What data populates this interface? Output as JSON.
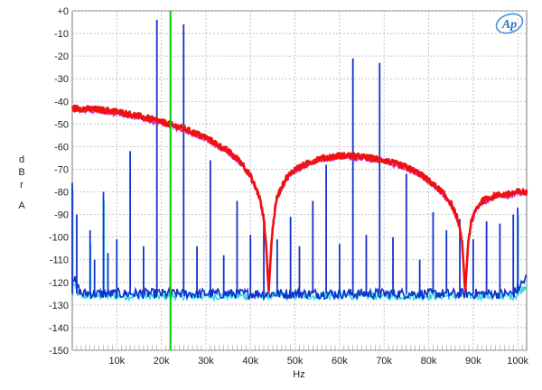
{
  "chart_data": {
    "type": "line",
    "xlabel": "Hz",
    "ylabel_lines": [
      "d",
      "B",
      "r",
      "",
      "A"
    ],
    "xlim": [
      0,
      102000
    ],
    "ylim": [
      -150,
      0
    ],
    "grid": true,
    "legend": "none",
    "logo_text": "Ap",
    "x_ticks": [
      {
        "v": 10000,
        "label": "10k"
      },
      {
        "v": 20000,
        "label": "20k"
      },
      {
        "v": 30000,
        "label": "30k"
      },
      {
        "v": 40000,
        "label": "40k"
      },
      {
        "v": 50000,
        "label": "50k"
      },
      {
        "v": 60000,
        "label": "60k"
      },
      {
        "v": 70000,
        "label": "70k"
      },
      {
        "v": 80000,
        "label": "80k"
      },
      {
        "v": 90000,
        "label": "90k"
      },
      {
        "v": 100000,
        "label": "100k"
      }
    ],
    "y_ticks": [
      {
        "v": 0,
        "label": "+0"
      },
      {
        "v": -10,
        "label": "-10"
      },
      {
        "v": -20,
        "label": "-20"
      },
      {
        "v": -30,
        "label": "-30"
      },
      {
        "v": -40,
        "label": "-40"
      },
      {
        "v": -50,
        "label": "-50"
      },
      {
        "v": -60,
        "label": "-60"
      },
      {
        "v": -70,
        "label": "-70"
      },
      {
        "v": -80,
        "label": "-80"
      },
      {
        "v": -90,
        "label": "-90"
      },
      {
        "v": -100,
        "label": "-100"
      },
      {
        "v": -110,
        "label": "-110"
      },
      {
        "v": -120,
        "label": "-120"
      },
      {
        "v": -130,
        "label": "-130"
      },
      {
        "v": -140,
        "label": "-140"
      },
      {
        "v": -150,
        "label": "-150"
      }
    ],
    "marker": {
      "x": 22050,
      "color": "#00cc00"
    },
    "series": [
      {
        "color": "#ee1111",
        "x": [
          0,
          5000,
          10000,
          15000,
          20000,
          25000,
          30000,
          35000,
          38000,
          40000,
          42000,
          43000,
          43500,
          44100,
          44700,
          45200,
          46000,
          48000,
          50000,
          55000,
          60000,
          62000,
          65000,
          70000,
          75000,
          78000,
          80000,
          83000,
          85000,
          86500,
          87500,
          88200,
          88900,
          89500,
          90500,
          92000,
          95000,
          98000,
          100000,
          102000
        ],
        "y": [
          -43,
          -43.5,
          -44.5,
          -46.5,
          -49,
          -52,
          -56,
          -62,
          -67,
          -73,
          -82,
          -92,
          -103,
          -124,
          -103,
          -92,
          -82,
          -74,
          -70,
          -65.5,
          -64,
          -64,
          -64.5,
          -66,
          -69,
          -72,
          -75,
          -80,
          -85,
          -92,
          -102,
          -124,
          -102,
          -94,
          -88,
          -84,
          -81.5,
          -81,
          -80,
          -80
        ]
      },
      {
        "color": "#1133cc",
        "floor": -125,
        "spikes": [
          {
            "x": 0,
            "y": -76
          },
          {
            "x": 1000,
            "y": -90
          },
          {
            "x": 4000,
            "y": -97
          },
          {
            "x": 5000,
            "y": -110
          },
          {
            "x": 7000,
            "y": -80
          },
          {
            "x": 8000,
            "y": -107
          },
          {
            "x": 10000,
            "y": -101
          },
          {
            "x": 13000,
            "y": -62
          },
          {
            "x": 16000,
            "y": -104
          },
          {
            "x": 19000,
            "y": -4
          },
          {
            "x": 22000,
            "y": -113
          },
          {
            "x": 25000,
            "y": -6
          },
          {
            "x": 28000,
            "y": -104
          },
          {
            "x": 31000,
            "y": -66
          },
          {
            "x": 34000,
            "y": -108
          },
          {
            "x": 37000,
            "y": -84
          },
          {
            "x": 40000,
            "y": -99
          },
          {
            "x": 43000,
            "y": -93
          },
          {
            "x": 46000,
            "y": -101
          },
          {
            "x": 49000,
            "y": -91
          },
          {
            "x": 51000,
            "y": -104
          },
          {
            "x": 54000,
            "y": -84
          },
          {
            "x": 57000,
            "y": -68
          },
          {
            "x": 60000,
            "y": -103
          },
          {
            "x": 63000,
            "y": -21
          },
          {
            "x": 66000,
            "y": -99
          },
          {
            "x": 69000,
            "y": -23
          },
          {
            "x": 72000,
            "y": -100
          },
          {
            "x": 75000,
            "y": -72
          },
          {
            "x": 78000,
            "y": -110
          },
          {
            "x": 81000,
            "y": -89
          },
          {
            "x": 84000,
            "y": -97
          },
          {
            "x": 87000,
            "y": -92
          },
          {
            "x": 90000,
            "y": -101
          },
          {
            "x": 93000,
            "y": -93
          },
          {
            "x": 96000,
            "y": -94
          },
          {
            "x": 99000,
            "y": -90
          },
          {
            "x": 100000,
            "y": -87
          }
        ]
      },
      {
        "color": "#22dddd",
        "floor": -126,
        "spikes": [
          {
            "x": 0,
            "y": -79
          },
          {
            "x": 4000,
            "y": -103
          },
          {
            "x": 7000,
            "y": -84
          },
          {
            "x": 100000,
            "y": -90
          }
        ]
      }
    ]
  }
}
